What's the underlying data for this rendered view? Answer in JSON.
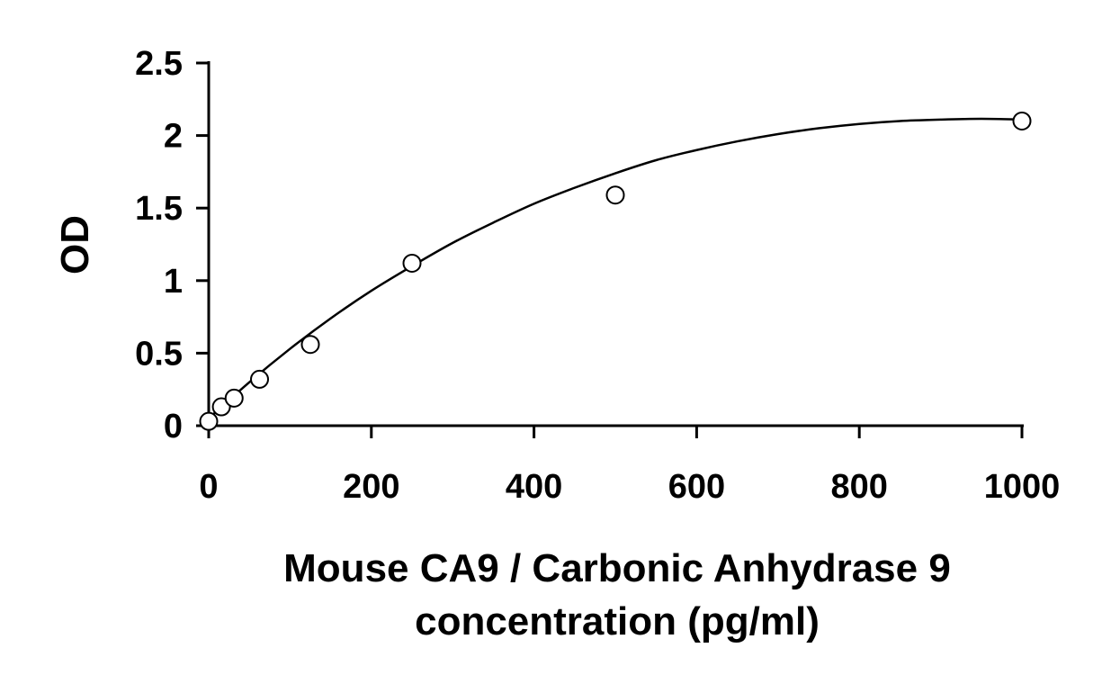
{
  "chart_data": {
    "type": "scatter",
    "title": "",
    "xlabel_lines": [
      "Mouse CA9 / Carbonic Anhydrase 9",
      "concentration (pg/ml)"
    ],
    "ylabel": "OD",
    "xlim": [
      0,
      1000
    ],
    "ylim": [
      0,
      2.5
    ],
    "x_ticks": [
      0,
      200,
      400,
      600,
      800,
      1000
    ],
    "x_tick_labels": [
      "0",
      "200",
      "400",
      "600",
      "800",
      "1000"
    ],
    "y_ticks": [
      0,
      0.5,
      1,
      1.5,
      2,
      2.5
    ],
    "y_tick_labels": [
      "0",
      "0.5",
      "1",
      "1.5",
      "2",
      "2.5"
    ],
    "grid": false,
    "legend": "none",
    "series": [
      {
        "marker": "open-circle",
        "x": [
          0,
          15.6,
          31.25,
          62.5,
          125,
          250,
          500,
          1000
        ],
        "y": [
          0.03,
          0.13,
          0.19,
          0.32,
          0.56,
          1.12,
          1.59,
          2.1
        ]
      }
    ],
    "fit_curve": {
      "type": "polynomial",
      "x": [
        0,
        50,
        100,
        150,
        200,
        250,
        300,
        350,
        400,
        450,
        500,
        550,
        600,
        650,
        700,
        750,
        800,
        850,
        900,
        950,
        1000
      ],
      "y": [
        0.05,
        0.3,
        0.53,
        0.74,
        0.93,
        1.1,
        1.26,
        1.4,
        1.53,
        1.64,
        1.74,
        1.83,
        1.9,
        1.96,
        2.01,
        2.05,
        2.08,
        2.1,
        2.11,
        2.115,
        2.11
      ]
    }
  }
}
